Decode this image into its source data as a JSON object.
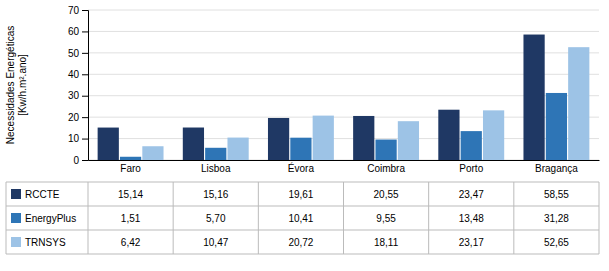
{
  "chart_data": {
    "type": "bar",
    "categories": [
      "Faro",
      "Lisboa",
      "Évora",
      "Coimbra",
      "Porto",
      "Bragança"
    ],
    "series": [
      {
        "name": "RCCTE",
        "color": "#1F3864",
        "values": [
          15.14,
          15.16,
          19.61,
          20.55,
          23.47,
          58.55
        ],
        "value_labels": [
          "15,14",
          "15,16",
          "19,61",
          "20,55",
          "23,47",
          "58,55"
        ]
      },
      {
        "name": "EnergyPlus",
        "color": "#2E75B6",
        "values": [
          1.51,
          5.7,
          10.41,
          9.55,
          13.48,
          31.28
        ],
        "value_labels": [
          "1,51",
          "5,70",
          "10,41",
          "9,55",
          "13,48",
          "31,28"
        ]
      },
      {
        "name": "TRNSYS",
        "color": "#9DC3E6",
        "values": [
          6.42,
          10.47,
          20.72,
          18.11,
          23.17,
          52.65
        ],
        "value_labels": [
          "6,42",
          "10,47",
          "20,72",
          "18,11",
          "23,17",
          "52,65"
        ]
      }
    ],
    "ylabel": "Necessidades Energéticas\n[Kw/h.m².ano]",
    "ylim": [
      0,
      70
    ],
    "yticks": [
      0,
      10,
      20,
      30,
      40,
      50,
      60,
      70
    ],
    "grid": true
  }
}
